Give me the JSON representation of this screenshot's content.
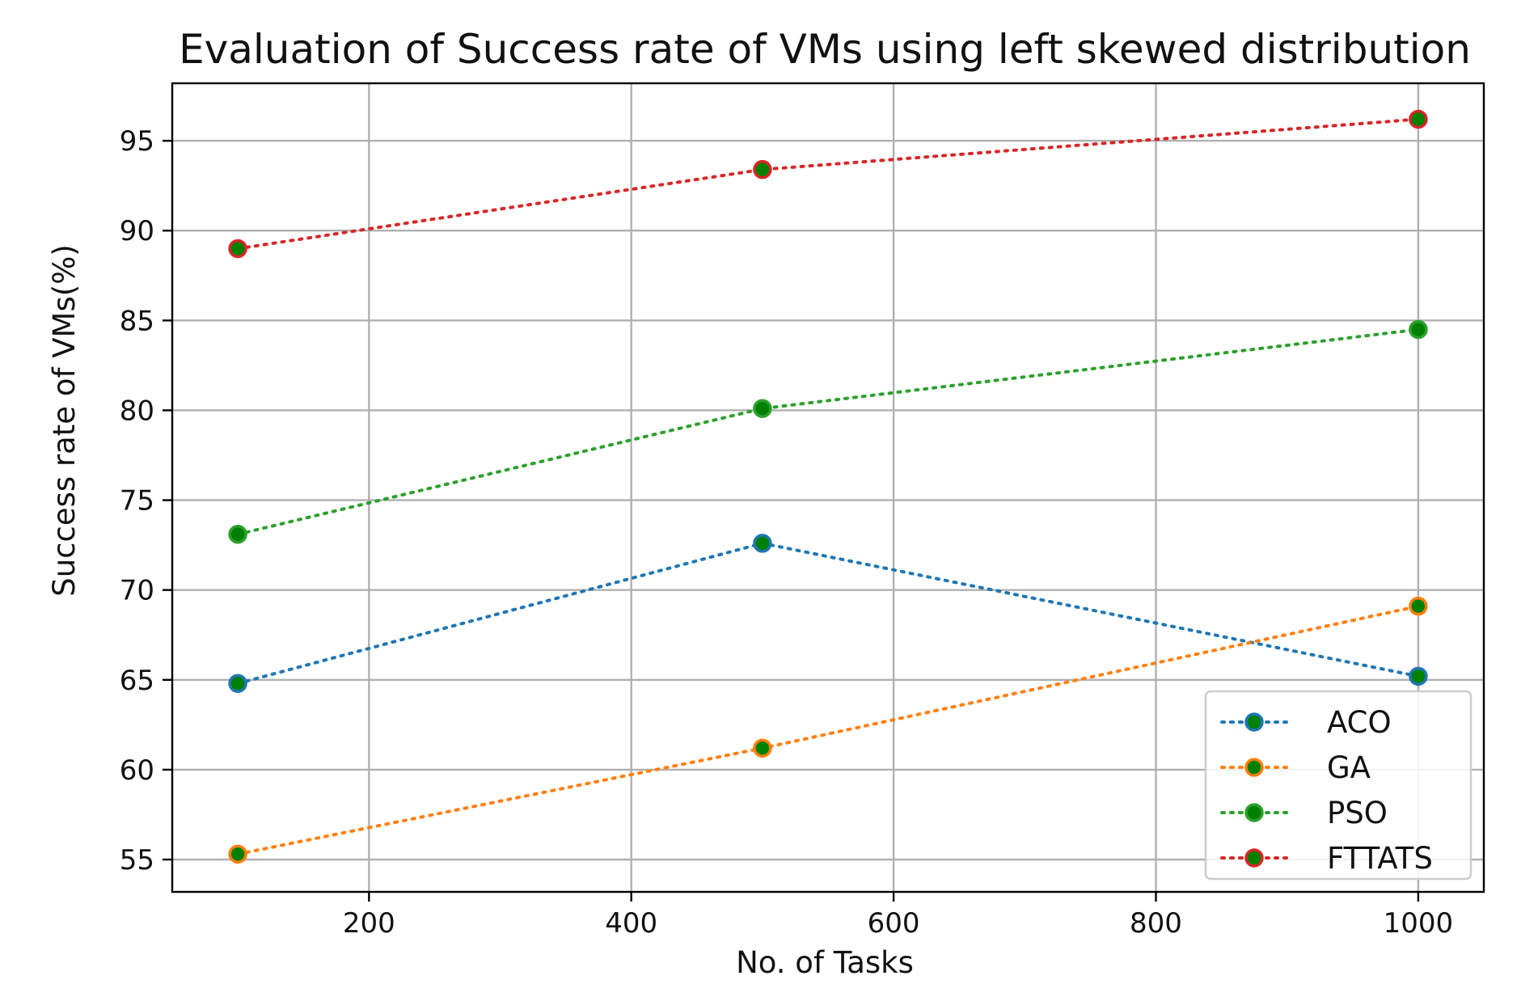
{
  "chart_data": {
    "type": "line",
    "title": "Evaluation of Success rate of VMs using left skewed distribution",
    "xlabel": "No. of Tasks",
    "ylabel": "Success rate of VMs(%)",
    "x": [
      100,
      500,
      1000
    ],
    "xlim": [
      50,
      1050
    ],
    "ylim": [
      53.2,
      98.2
    ],
    "xticks": [
      200,
      400,
      600,
      800,
      1000
    ],
    "yticks": [
      55,
      60,
      65,
      70,
      75,
      80,
      85,
      90,
      95
    ],
    "grid": true,
    "legend_position": "lower-right",
    "series": [
      {
        "name": "ACO",
        "values": [
          64.8,
          72.6,
          65.2
        ],
        "color": "#1f77b4"
      },
      {
        "name": "GA",
        "values": [
          55.3,
          61.2,
          69.1
        ],
        "color": "#ff7f0e"
      },
      {
        "name": "PSO",
        "values": [
          73.1,
          80.1,
          84.5
        ],
        "color": "#2ca02c"
      },
      {
        "name": "FTTATS",
        "values": [
          89.0,
          93.4,
          96.2
        ],
        "color": "#d62728"
      }
    ],
    "marker_face_color": "#008000"
  }
}
